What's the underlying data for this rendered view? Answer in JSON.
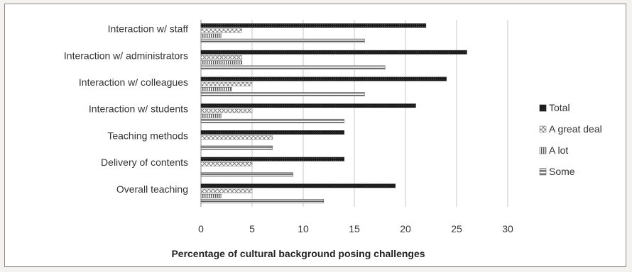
{
  "chart_data": {
    "type": "bar",
    "orientation": "horizontal",
    "categories": [
      "Interaction w/ staff",
      "Interaction w/ administrators",
      "Interaction w/ colleagues",
      "Interaction w/ students",
      "Teaching methods",
      "Delivery of contents",
      "Overall teaching"
    ],
    "series": [
      {
        "name": "Total",
        "values": [
          22,
          26,
          24,
          21,
          14,
          14,
          19
        ]
      },
      {
        "name": "A great deal",
        "values": [
          4,
          4,
          5,
          5,
          7,
          5,
          5
        ]
      },
      {
        "name": "A lot",
        "values": [
          2,
          4,
          3,
          2,
          0,
          0,
          2
        ]
      },
      {
        "name": "Some",
        "values": [
          16,
          18,
          16,
          14,
          7,
          9,
          12
        ]
      }
    ],
    "xlim": [
      0,
      30
    ],
    "xticks": [
      "0",
      "5",
      "10",
      "15",
      "20",
      "25",
      "30"
    ],
    "xlabel": "Percentage of cultural background posing challenges",
    "ylabel": "",
    "grid": "vertical",
    "legend": "right",
    "legend_entries": [
      "Total",
      "A great deal",
      "A lot",
      "Some"
    ]
  }
}
